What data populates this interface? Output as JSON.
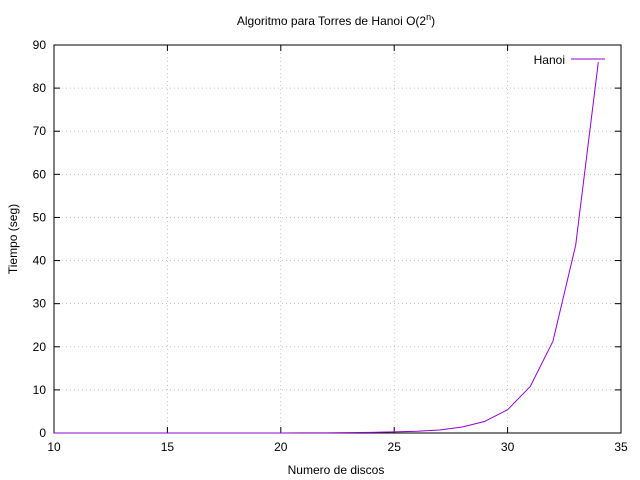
{
  "chart_data": {
    "type": "line",
    "title_main": "Algoritmo para Torres de Hanoi O(2",
    "title_sup": "n",
    "title_close": ")",
    "xlabel": "Numero de discos",
    "ylabel": "Tiempo (seg)",
    "xlim": [
      10,
      35
    ],
    "ylim": [
      0,
      90
    ],
    "xticks": [
      10,
      15,
      20,
      25,
      30,
      35
    ],
    "yticks": [
      0,
      10,
      20,
      30,
      40,
      50,
      60,
      70,
      80,
      90
    ],
    "grid": true,
    "legend_position": "top-right",
    "series": [
      {
        "name": "Hanoi",
        "color": "#9400d3",
        "x": [
          10,
          11,
          12,
          13,
          14,
          15,
          16,
          17,
          18,
          19,
          20,
          21,
          22,
          23,
          24,
          25,
          26,
          27,
          28,
          29,
          30,
          31,
          32,
          33,
          34
        ],
        "y": [
          0.0,
          0.0,
          0.0,
          0.0,
          0.0,
          0.0,
          0.0,
          0.0,
          0.0,
          0.0,
          0.01,
          0.02,
          0.04,
          0.08,
          0.15,
          0.25,
          0.4,
          0.7,
          1.4,
          2.7,
          5.4,
          10.8,
          21.3,
          43.5,
          86.0
        ]
      }
    ]
  }
}
